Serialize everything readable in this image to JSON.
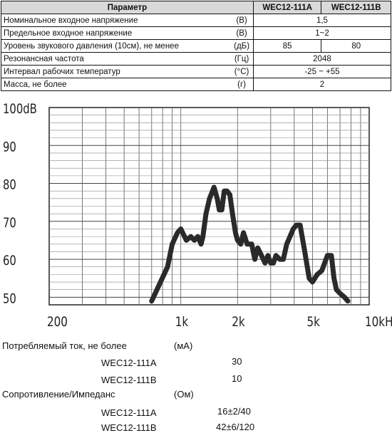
{
  "table": {
    "headers": [
      "Параметр",
      "WEC12-111A",
      "WEC12-111B"
    ],
    "rows": [
      {
        "name": "Номинальное входное напряжение",
        "unit": "(В)",
        "value": "1,5"
      },
      {
        "name": "Предельное входное напряжение",
        "unit": "(В)",
        "value": "1~2"
      },
      {
        "name": "Уровень звукового давления (10см), не менее",
        "unit": "(дБ)",
        "value_a": "85",
        "value_b": "80"
      },
      {
        "name": "Резонансная частота",
        "unit": "(Гц)",
        "value": "2048"
      },
      {
        "name": "Интервал рабочих температур",
        "unit": "(°C)",
        "value": "-25 ~ +55"
      },
      {
        "name": "Масса, не более",
        "unit": "(г)",
        "value": "2"
      }
    ]
  },
  "chart_data": {
    "type": "line",
    "title": "",
    "xlabel": "",
    "ylabel": "",
    "x_scale": "log",
    "xlim": [
      200,
      10000
    ],
    "ylim": [
      48,
      100
    ],
    "x_ticks": [
      "200",
      "1k",
      "2k",
      "5k",
      "10kHz"
    ],
    "y_ticks": [
      "100dB",
      "90",
      "80",
      "70",
      "60",
      "50"
    ],
    "grid": true,
    "series": [
      {
        "x": [
          700,
          780,
          850,
          900,
          960,
          1000,
          1070,
          1130,
          1180,
          1230,
          1280,
          1310,
          1360,
          1420,
          1500,
          1560,
          1600,
          1650,
          1700,
          1760,
          1820,
          1880,
          1950,
          2000,
          2080,
          2150,
          2250,
          2380,
          2470,
          2560,
          2680,
          2800,
          2900,
          3000,
          3100,
          3200,
          3350,
          3500,
          3650,
          3800,
          3950,
          4100,
          4300,
          4550,
          4800,
          5000,
          5300,
          5600,
          6000,
          6300,
          6500,
          6700,
          7000,
          7400,
          7700
        ],
        "y": [
          49,
          54,
          58,
          64,
          67,
          68,
          65,
          66,
          65,
          66,
          64,
          66,
          72,
          76,
          79,
          76,
          73,
          73,
          78,
          78,
          77,
          72,
          67,
          65,
          64,
          67,
          64,
          64,
          60,
          63,
          61,
          59,
          61,
          59,
          59,
          61,
          60,
          60,
          64,
          66,
          68,
          69,
          69,
          62,
          55,
          54,
          56,
          57,
          61,
          61,
          55,
          52,
          51,
          50,
          49
        ]
      }
    ]
  },
  "bottom": {
    "current_label": "Потребляемый ток, не более",
    "current_unit": "(мА)",
    "current_a_model": "WEC12-111A",
    "current_a_value": "30",
    "current_b_model": "WEC12-111B",
    "current_b_value": "10",
    "impedance_label": "Сопротивление/Импеданс",
    "impedance_unit": "(Ом)",
    "impedance_a_model": "WEC12-111A",
    "impedance_a_value": "16±2/40",
    "impedance_b_model": "WEC12-111B",
    "impedance_b_value": "42±6/120"
  }
}
